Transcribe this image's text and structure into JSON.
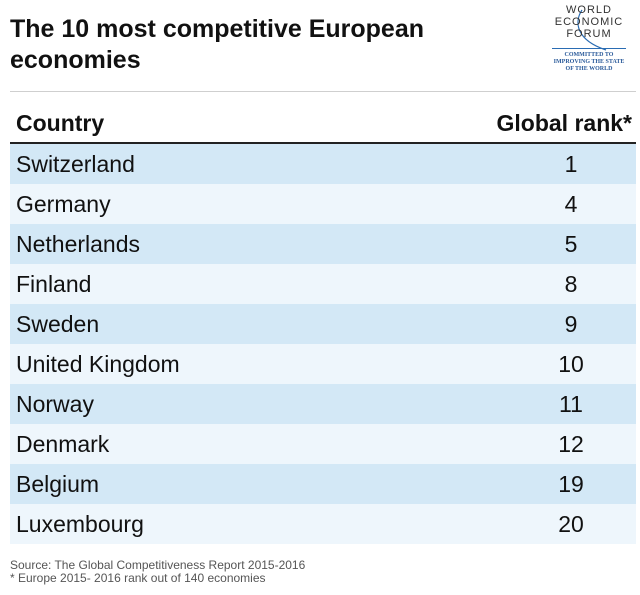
{
  "header": {
    "title": "The 10 most competitive European economies"
  },
  "logo": {
    "line1": "WORLD",
    "line2": "ECONOMIC",
    "line3": "FORUM",
    "tagline1": "COMMITTED TO",
    "tagline2": "IMPROVING THE STATE",
    "tagline3": "OF THE WORLD"
  },
  "colors": {
    "row_dark": "#d3e8f6",
    "row_light": "#eef6fc",
    "logo_blue": "#2a6cb3"
  },
  "chart_data": {
    "type": "table",
    "title": "The 10 most competitive European economies",
    "columns": [
      "Country",
      "Global rank*"
    ],
    "rows": [
      {
        "country": "Switzerland",
        "rank": "1"
      },
      {
        "country": "Germany",
        "rank": "4"
      },
      {
        "country": "Netherlands",
        "rank": "5"
      },
      {
        "country": "Finland",
        "rank": "8"
      },
      {
        "country": "Sweden",
        "rank": "9"
      },
      {
        "country": "United Kingdom",
        "rank": "10"
      },
      {
        "country": "Norway",
        "rank": "11"
      },
      {
        "country": "Denmark",
        "rank": "12"
      },
      {
        "country": "Belgium",
        "rank": "19"
      },
      {
        "country": "Luxembourg",
        "rank": "20"
      }
    ]
  },
  "footer": {
    "source": "Source: The Global Competitiveness Report 2015-2016",
    "note": "* Europe 2015- 2016 rank out of 140 economies"
  }
}
